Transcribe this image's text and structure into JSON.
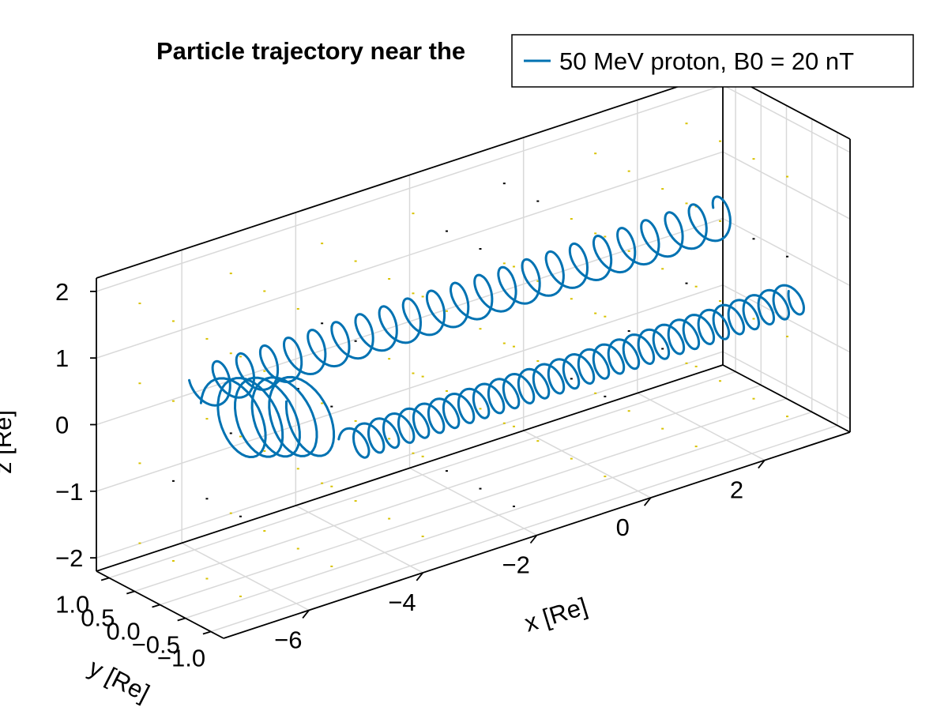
{
  "chart_data": {
    "type": "line",
    "title": "Particle trajectory near the",
    "xlabel": "x [Re]",
    "ylabel": "y [Re]",
    "zlabel": "z [Re]",
    "x_ticks": [
      "−6",
      "−4",
      "−2",
      "0",
      "2"
    ],
    "y_ticks": [
      "1.0",
      "0.5",
      "0.0",
      "−0.5",
      "−1.0"
    ],
    "z_ticks": [
      "−2",
      "−1",
      "0",
      "1",
      "2"
    ],
    "xlim": [
      -7.5,
      3.5
    ],
    "ylim": [
      -1.25,
      1.25
    ],
    "zlim": [
      -2.2,
      2.2
    ],
    "grid": true,
    "legend_position": "top-right",
    "series": [
      {
        "name": "50 MeV proton, B0 = 20 nT",
        "color": "#0072b2",
        "segments": [
          {
            "x": [
              3.0,
              -6.2
            ],
            "y": [
              0.6,
              0.6
            ],
            "z": [
              0.45,
              0.45
            ],
            "loops": 22,
            "loop_radius": 0.28
          },
          {
            "x": [
              -6.2,
              -4.7
            ],
            "y": [
              0.1,
              0.1
            ],
            "z": [
              0.2,
              -0.2
            ],
            "loops": 5,
            "loop_radius": 0.55
          },
          {
            "x": [
              -4.7,
              3.2
            ],
            "y": [
              -0.6,
              -0.6
            ],
            "z": [
              -0.35,
              -0.35
            ],
            "loops": 30,
            "loop_radius": 0.22
          }
        ]
      }
    ]
  }
}
